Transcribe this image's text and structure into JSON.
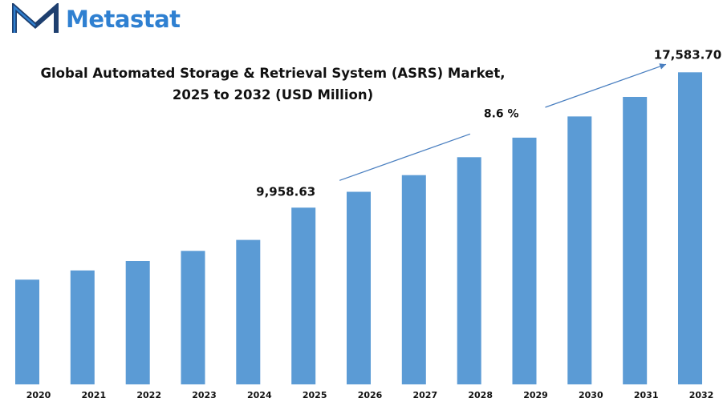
{
  "brand": {
    "name": "Metastat",
    "logo_icon": "metastat-m-logo-icon",
    "color": "#2f80d1",
    "mark_color": "#1e3f6f"
  },
  "chart_data": {
    "type": "bar",
    "title_line1": "Global Automated Storage & Retrieval System (ASRS) Market,",
    "title_line2": "2025 to 2032 (USD Million)",
    "xlabel": "",
    "ylabel": "",
    "categories": [
      "2020",
      "2021",
      "2022",
      "2023",
      "2024",
      "2025",
      "2026",
      "2027",
      "2028",
      "2029",
      "2030",
      "2031",
      "2032"
    ],
    "series": [
      {
        "values": [
          5900,
          6420,
          6950,
          7520,
          8140,
          9958.63,
          10850,
          11790,
          12800,
          13900,
          15100,
          16200,
          17583.7
        ],
        "color": "#5b9bd5"
      }
    ],
    "data_labels": [
      {
        "category": "2025",
        "text": "9,958.63"
      },
      {
        "category": "2032",
        "text": "17,583.70"
      }
    ],
    "annotation": {
      "cagr_text": "8.6  %",
      "arrow_from_category": "2025",
      "arrow_to_category": "2032",
      "color": "#4a7fc0"
    },
    "ylim": [
      0,
      18500
    ],
    "grid": false,
    "legend": "none"
  }
}
